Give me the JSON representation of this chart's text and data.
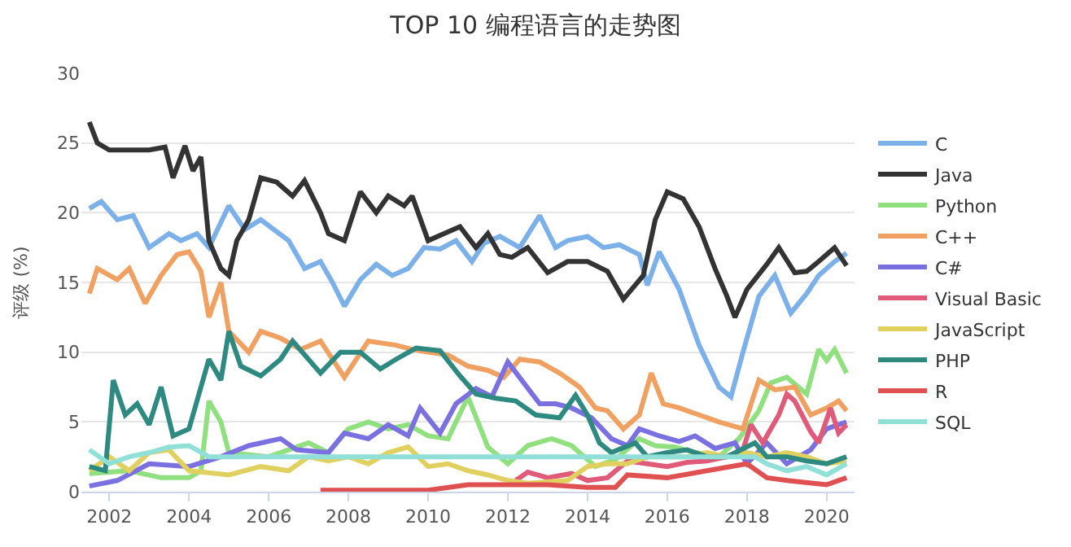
{
  "chart_data": {
    "type": "line",
    "title": "TOP 10 编程语言的走势图",
    "ylabel": "评级 (%)",
    "xlim": [
      2001.3,
      2020.7
    ],
    "xticks": [
      2002,
      2004,
      2006,
      2008,
      2010,
      2012,
      2014,
      2016,
      2018,
      2020
    ],
    "ylim": [
      0,
      30
    ],
    "yticks": [
      0,
      5,
      10,
      15,
      20,
      25,
      30
    ],
    "grid": "y",
    "legend": "right",
    "marker": "none",
    "line_style": "solid",
    "series": [
      {
        "name": "C",
        "color": "#7cb0e8",
        "x": [
          2001.5,
          2001.8,
          2002.2,
          2002.6,
          2003,
          2003.5,
          2003.8,
          2004.2,
          2004.5,
          2005,
          2005.4,
          2005.8,
          2006.5,
          2006.9,
          2007.3,
          2007.6,
          2007.9,
          2008.3,
          2008.7,
          2009.1,
          2009.5,
          2009.9,
          2010.3,
          2010.7,
          2011.1,
          2011.4,
          2011.8,
          2012.3,
          2012.8,
          2013.2,
          2013.5,
          2014,
          2014.4,
          2014.8,
          2015.3,
          2015.5,
          2015.8,
          2016.3,
          2016.8,
          2017.3,
          2017.6,
          2017.9,
          2018.3,
          2018.7,
          2019.1,
          2019.5,
          2019.8,
          2020.2,
          2020.5
        ],
        "values": [
          20.3,
          20.8,
          19.5,
          19.8,
          17.5,
          18.5,
          18,
          18.5,
          17.5,
          20.5,
          18.8,
          19.5,
          18,
          16,
          16.5,
          15,
          13.3,
          15.2,
          16.3,
          15.5,
          16,
          17.5,
          17.4,
          18,
          16.5,
          17.8,
          18.3,
          17.5,
          19.8,
          17.5,
          18,
          18.3,
          17.5,
          17.7,
          17,
          14.8,
          17.2,
          14.5,
          10.5,
          7.5,
          6.8,
          10,
          14,
          15.5,
          12.8,
          14.2,
          15.5,
          16.5,
          17.1
        ]
      },
      {
        "name": "Java",
        "color": "#333333",
        "x": [
          2001.5,
          2001.7,
          2002,
          2002.5,
          2003,
          2003.4,
          2003.6,
          2003.9,
          2004.1,
          2004.3,
          2004.5,
          2004.8,
          2005,
          2005.2,
          2005.5,
          2005.8,
          2006.2,
          2006.6,
          2006.9,
          2007.3,
          2007.5,
          2007.9,
          2008.3,
          2008.7,
          2009,
          2009.4,
          2009.6,
          2010,
          2010.4,
          2010.8,
          2011.2,
          2011.5,
          2011.8,
          2012.1,
          2012.5,
          2013,
          2013.5,
          2014,
          2014.5,
          2014.9,
          2015.4,
          2015.7,
          2016,
          2016.4,
          2016.8,
          2017.2,
          2017.5,
          2017.7,
          2018,
          2018.5,
          2018.8,
          2019.2,
          2019.5,
          2019.8,
          2020.2,
          2020.5
        ],
        "values": [
          26.5,
          25,
          24.5,
          24.5,
          24.5,
          24.7,
          22.5,
          24.8,
          23,
          24,
          18,
          16,
          15.5,
          18,
          19.5,
          22.5,
          22.2,
          21.2,
          22.3,
          20,
          18.5,
          18,
          21.5,
          20,
          21.2,
          20.5,
          21.2,
          18,
          18.5,
          19,
          17.5,
          18.5,
          17,
          16.8,
          17.5,
          15.7,
          16.5,
          16.5,
          15.8,
          13.8,
          15.5,
          19.5,
          21.5,
          21,
          19,
          16,
          14,
          12.5,
          14.5,
          16.3,
          17.5,
          15.7,
          15.8,
          16.5,
          17.5,
          16.2
        ]
      },
      {
        "name": "Python",
        "color": "#90e080",
        "x": [
          2001.5,
          2002.5,
          2003.3,
          2004,
          2004.3,
          2004.5,
          2004.8,
          2005,
          2006,
          2006.5,
          2007,
          2007.5,
          2008,
          2008.5,
          2009,
          2009.5,
          2010,
          2010.5,
          2011,
          2011.5,
          2012,
          2012.5,
          2013.1,
          2013.6,
          2014.2,
          2014.7,
          2015.3,
          2015.7,
          2016.2,
          2016.7,
          2017.3,
          2017.8,
          2018.3,
          2018.6,
          2019,
          2019.5,
          2019.8,
          2020,
          2020.2,
          2020.5
        ],
        "values": [
          1.3,
          1.5,
          1,
          1,
          1.5,
          6.5,
          5,
          2.8,
          2.5,
          3,
          3.5,
          2.8,
          4.5,
          5,
          4.5,
          4.8,
          4,
          3.8,
          6.8,
          3.2,
          2,
          3.3,
          3.8,
          3.3,
          1.8,
          2.3,
          3.8,
          3.3,
          3.2,
          2.8,
          2.5,
          3.8,
          5.8,
          7.8,
          8.2,
          7,
          10.2,
          9.4,
          10.2,
          8.5
        ]
      },
      {
        "name": "C++",
        "color": "#f0a060",
        "x": [
          2001.5,
          2001.7,
          2002.2,
          2002.5,
          2002.9,
          2003.3,
          2003.7,
          2004,
          2004.3,
          2004.5,
          2004.8,
          2005,
          2005.5,
          2005.8,
          2006.3,
          2006.8,
          2007.3,
          2007.9,
          2008.5,
          2009.2,
          2009.6,
          2010,
          2010.5,
          2011,
          2011.5,
          2011.9,
          2012.3,
          2012.8,
          2013.3,
          2013.8,
          2014.2,
          2014.5,
          2014.9,
          2015.3,
          2015.6,
          2015.9,
          2016.3,
          2016.8,
          2017.3,
          2017.9,
          2018.3,
          2018.7,
          2019.2,
          2019.6,
          2020,
          2020.3,
          2020.5
        ],
        "values": [
          14.2,
          16,
          15.2,
          16,
          13.5,
          15.5,
          17,
          17.2,
          15.8,
          12.5,
          15,
          11.5,
          10,
          11.5,
          11,
          10.2,
          10.8,
          8.2,
          10.8,
          10.5,
          10.2,
          10,
          9.8,
          9,
          8.7,
          8.2,
          9.5,
          9.3,
          8.5,
          7.5,
          6,
          5.8,
          4.5,
          5.5,
          8.5,
          6.3,
          6,
          5.5,
          5,
          4.5,
          8,
          7.3,
          7.5,
          5.5,
          6,
          6.5,
          5.8
        ]
      },
      {
        "name": "C#",
        "color": "#7b70e0",
        "x": [
          2001.5,
          2002.2,
          2003,
          2004,
          2004.8,
          2005.5,
          2006.3,
          2006.7,
          2007.5,
          2007.9,
          2008.5,
          2009,
          2009.5,
          2009.8,
          2010.3,
          2010.7,
          2011.2,
          2011.6,
          2012,
          2012.4,
          2012.8,
          2013.2,
          2013.6,
          2014.1,
          2014.6,
          2015,
          2015.3,
          2015.8,
          2016.3,
          2016.7,
          2017.2,
          2017.7,
          2018,
          2018.5,
          2019,
          2019.6,
          2020,
          2020.5
        ],
        "values": [
          0.4,
          0.8,
          2,
          1.8,
          2.5,
          3.3,
          3.8,
          3,
          2.8,
          4.2,
          3.8,
          4.8,
          4,
          6,
          4.2,
          6.3,
          7.4,
          6.8,
          9.3,
          7.8,
          6.3,
          6.3,
          6,
          5.3,
          3.8,
          3.3,
          4.5,
          4,
          3.6,
          4,
          3.1,
          3.5,
          2,
          3.5,
          2,
          3,
          4.5,
          5
        ]
      },
      {
        "name": "Visual Basic",
        "color": "#e05a7a",
        "x": [
          2012.2,
          2012.5,
          2013,
          2013.6,
          2014,
          2014.5,
          2015,
          2015.5,
          2016,
          2016.5,
          2017,
          2017.5,
          2017.9,
          2018.1,
          2018.4,
          2018.8,
          2019,
          2019.2,
          2019.6,
          2019.8,
          2020.1,
          2020.3,
          2020.5
        ],
        "values": [
          0.8,
          1.4,
          1,
          1.3,
          0.8,
          1,
          2.2,
          2,
          1.8,
          2.1,
          2.2,
          2.5,
          3,
          4.8,
          3.5,
          5.5,
          7,
          6.5,
          4.3,
          3.5,
          6,
          4.2,
          4.8
        ]
      },
      {
        "name": "JavaScript",
        "color": "#e0d060",
        "x": [
          2001.5,
          2002,
          2002.5,
          2003,
          2003.5,
          2004,
          2005,
          2005.8,
          2006.5,
          2007,
          2007.5,
          2008,
          2008.5,
          2009,
          2009.5,
          2010,
          2010.5,
          2011,
          2011.5,
          2012,
          2012.5,
          2013,
          2013.5,
          2014,
          2014.5,
          2015,
          2015.5,
          2016,
          2016.5,
          2017,
          2017.5,
          2018,
          2018.5,
          2019,
          2019.5,
          2020,
          2020.5
        ],
        "values": [
          1.5,
          2.5,
          1.5,
          2.8,
          3,
          1.5,
          1.2,
          1.8,
          1.5,
          2.5,
          2.2,
          2.5,
          2,
          2.8,
          3.2,
          1.8,
          2,
          1.5,
          1.2,
          0.8,
          0.6,
          0.7,
          0.8,
          1.8,
          2,
          2,
          2.5,
          2.5,
          2.5,
          2.8,
          2.5,
          2.8,
          2.5,
          2.8,
          2.5,
          2,
          2.2
        ]
      },
      {
        "name": "PHP",
        "color": "#2e8a80",
        "x": [
          2001.5,
          2001.9,
          2002.1,
          2002.4,
          2002.7,
          2003,
          2003.3,
          2003.6,
          2004,
          2004.3,
          2004.5,
          2004.8,
          2005,
          2005.3,
          2005.8,
          2006.3,
          2006.6,
          2007.3,
          2007.8,
          2008.3,
          2008.8,
          2009.2,
          2009.7,
          2010.3,
          2010.8,
          2011.2,
          2011.7,
          2012.2,
          2012.7,
          2013.3,
          2013.7,
          2014,
          2014.3,
          2014.6,
          2015.2,
          2015.5,
          2016,
          2016.5,
          2017,
          2017.5,
          2018.2,
          2018.5,
          2019,
          2019.5,
          2020,
          2020.5
        ],
        "values": [
          1.8,
          1.5,
          8,
          5.5,
          6.3,
          4.8,
          7.5,
          4,
          4.5,
          7.5,
          9.5,
          8,
          11.5,
          9,
          8.3,
          9.5,
          10.8,
          8.5,
          10,
          10,
          8.8,
          9.5,
          10.3,
          10.1,
          8.3,
          7,
          6.7,
          6.5,
          5.5,
          5.3,
          6.9,
          5.5,
          3.5,
          2.8,
          3.5,
          2.5,
          2.8,
          3,
          2.5,
          2.5,
          3.5,
          2.5,
          2.5,
          2.2,
          2,
          2.5
        ]
      },
      {
        "name": "R",
        "color": "#e05050",
        "x": [
          2007.3,
          2008,
          2009,
          2010,
          2011,
          2012,
          2013,
          2014,
          2014.7,
          2015,
          2016,
          2017,
          2018,
          2018.5,
          2019,
          2020,
          2020.5
        ],
        "values": [
          0.1,
          0.1,
          0.1,
          0.1,
          0.5,
          0.5,
          0.5,
          0.3,
          0.3,
          1.2,
          1,
          1.5,
          2,
          1,
          0.8,
          0.5,
          1
        ]
      },
      {
        "name": "SQL",
        "color": "#90e0d8",
        "x": [
          2001.5,
          2002,
          2002.5,
          2003,
          2003.5,
          2004,
          2004.5,
          2005,
          2008,
          2012,
          2016,
          2018.2,
          2018.5,
          2019,
          2019.5,
          2020,
          2020.5
        ],
        "values": [
          3,
          2,
          2.5,
          2.8,
          3.2,
          3.3,
          2.5,
          2.5,
          2.5,
          2.5,
          2.5,
          2.5,
          2,
          1.5,
          1.8,
          1.2,
          2
        ]
      }
    ]
  }
}
